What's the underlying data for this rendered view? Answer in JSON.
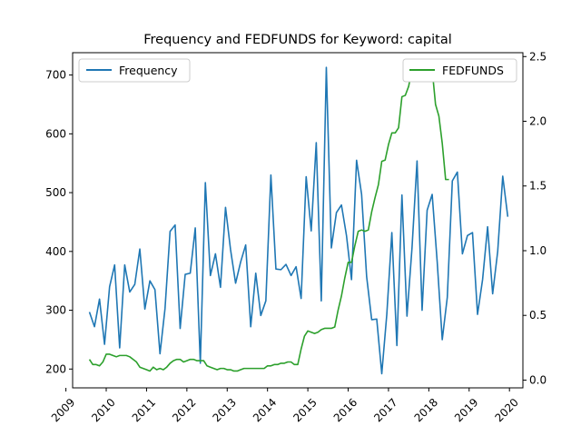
{
  "chart_data": {
    "type": "line",
    "title": "Frequency and FEDFUNDS for Keyword: capital",
    "xlabel": "",
    "ylabel_left": "",
    "ylabel_right": "",
    "x_start": "2009-08",
    "x_ticks": [
      "2009",
      "2010",
      "2011",
      "2012",
      "2013",
      "2014",
      "2015",
      "2016",
      "2017",
      "2018",
      "2019",
      "2020"
    ],
    "y_left_ticks": [
      200,
      300,
      400,
      500,
      600,
      700
    ],
    "y_right_ticks": [
      "0.0",
      "0.5",
      "1.0",
      "1.5",
      "2.0",
      "2.5"
    ],
    "y_left_lim": [
      168,
      738
    ],
    "y_right_lim": [
      -0.06,
      2.53
    ],
    "x_lim": [
      "2009-03",
      "2020-05"
    ],
    "legend_left": {
      "label": "Frequency",
      "placement": "upper left"
    },
    "legend_right": {
      "label": "FEDFUNDS",
      "placement": "upper right"
    },
    "series": [
      {
        "name": "Frequency",
        "axis": "left",
        "color": "#1f77b4",
        "values": [
          297,
          272,
          319,
          242,
          340,
          377,
          236,
          377,
          331,
          344,
          404,
          302,
          350,
          335,
          226,
          303,
          434,
          445,
          269,
          361,
          363,
          440,
          210,
          517,
          359,
          396,
          339,
          475,
          403,
          346,
          382,
          411,
          272,
          363,
          291,
          316,
          530,
          370,
          369,
          378,
          359,
          374,
          320,
          527,
          435,
          585,
          316,
          713,
          406,
          466,
          479,
          427,
          352,
          555,
          497,
          357,
          284,
          285,
          192,
          293,
          432,
          240,
          496,
          290,
          406,
          554,
          300,
          470,
          497,
          382,
          250,
          322,
          520,
          535,
          396,
          427,
          432,
          293,
          352,
          442,
          328,
          400,
          528,
          459
        ],
        "categories_note": "monthly"
      },
      {
        "name": "FEDFUNDS",
        "axis": "right",
        "color": "#2ca02c",
        "values": [
          0.16,
          0.12,
          0.12,
          0.11,
          0.14,
          0.2,
          0.2,
          0.19,
          0.18,
          0.19,
          0.19,
          0.19,
          0.18,
          0.16,
          0.14,
          0.1,
          0.09,
          0.08,
          0.07,
          0.1,
          0.08,
          0.09,
          0.08,
          0.1,
          0.13,
          0.15,
          0.16,
          0.16,
          0.14,
          0.15,
          0.16,
          0.16,
          0.15,
          0.15,
          0.15,
          0.11,
          0.1,
          0.09,
          0.08,
          0.09,
          0.09,
          0.08,
          0.08,
          0.07,
          0.07,
          0.08,
          0.09,
          0.09,
          0.09,
          0.09,
          0.09,
          0.09,
          0.09,
          0.11,
          0.11,
          0.12,
          0.12,
          0.13,
          0.13,
          0.14,
          0.14,
          0.12,
          0.12,
          0.24,
          0.34,
          0.38,
          0.37,
          0.36,
          0.37,
          0.39,
          0.4,
          0.4,
          0.4,
          0.41,
          0.54,
          0.65,
          0.79,
          0.91,
          0.91,
          1.04,
          1.15,
          1.16,
          1.15,
          1.16,
          1.3,
          1.41,
          1.51,
          1.69,
          1.7,
          1.82,
          1.91,
          1.91,
          1.95,
          2.19,
          2.2,
          2.27,
          2.4,
          2.4,
          2.41,
          2.4,
          2.4,
          2.38,
          2.4,
          2.13,
          2.04,
          1.83,
          1.55,
          1.55
        ]
      }
    ]
  }
}
